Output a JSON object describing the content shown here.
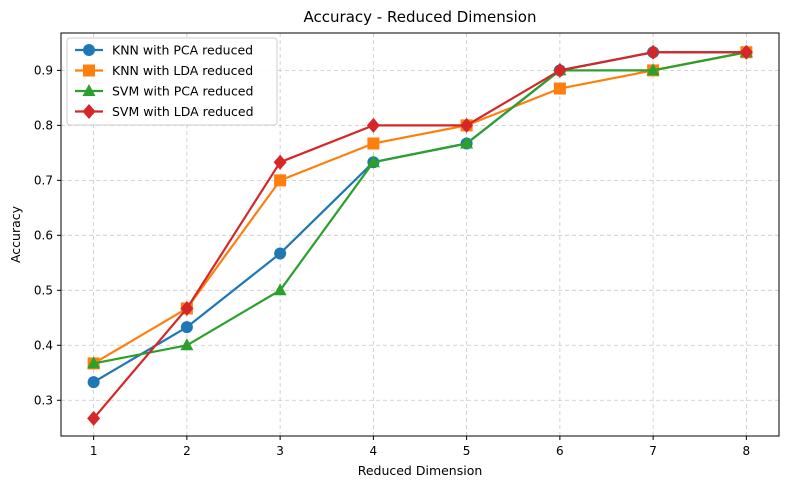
{
  "chart_data": {
    "type": "line",
    "title": "Accuracy - Reduced Dimension",
    "xlabel": "Reduced Dimension",
    "ylabel": "Accuracy",
    "x": [
      1,
      2,
      3,
      4,
      5,
      6,
      7,
      8
    ],
    "xlim": [
      0.65,
      8.35
    ],
    "ylim": [
      0.235,
      0.968
    ],
    "xticks": [
      1,
      2,
      3,
      4,
      5,
      6,
      7,
      8
    ],
    "yticks": [
      "0.3",
      "0.4",
      "0.5",
      "0.6",
      "0.7",
      "0.8",
      "0.9"
    ],
    "grid": true,
    "legend_position": "top-left",
    "series": [
      {
        "name": "KNN with PCA reduced",
        "color": "#1f77b4",
        "marker": "circle",
        "values": [
          0.333,
          0.433,
          0.567,
          0.733,
          0.767,
          0.9,
          0.933,
          0.933
        ]
      },
      {
        "name": "KNN with LDA reduced",
        "color": "#ff7f0e",
        "marker": "square",
        "values": [
          0.367,
          0.467,
          0.7,
          0.767,
          0.8,
          0.867,
          0.9,
          0.933
        ]
      },
      {
        "name": "SVM with PCA reduced",
        "color": "#2ca02c",
        "marker": "triangle",
        "values": [
          0.367,
          0.4,
          0.5,
          0.733,
          0.767,
          0.9,
          0.9,
          0.933
        ]
      },
      {
        "name": "SVM with LDA reduced",
        "color": "#d62728",
        "marker": "diamond",
        "values": [
          0.267,
          0.467,
          0.733,
          0.8,
          0.8,
          0.9,
          0.933,
          0.933
        ]
      }
    ]
  }
}
